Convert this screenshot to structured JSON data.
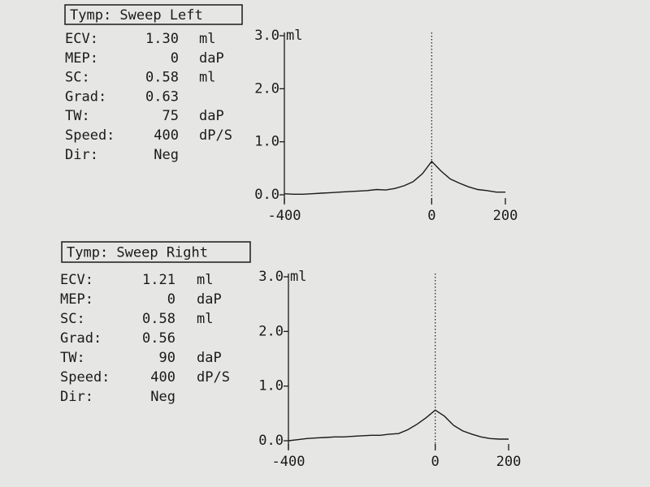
{
  "chart_data": [
    {
      "type": "line",
      "title": "Tymp: Sweep Left",
      "params": [
        [
          "ECV:",
          "1.30",
          "ml"
        ],
        [
          "MEP:",
          "0",
          "daP"
        ],
        [
          "SC:",
          "0.58",
          "ml"
        ],
        [
          "Grad:",
          "0.63"
        ],
        [
          "TW:",
          "75",
          "daP"
        ],
        [
          "Speed:",
          "400",
          "dP/S"
        ],
        [
          "Dir:",
          "Neg"
        ]
      ],
      "y_label": "ml",
      "x": [
        -400,
        -375,
        -350,
        -325,
        -300,
        -275,
        -250,
        -225,
        -200,
        -175,
        -150,
        -125,
        -100,
        -75,
        -50,
        -25,
        0,
        25,
        50,
        75,
        100,
        125,
        150,
        175,
        200
      ],
      "values": [
        0.02,
        0.01,
        0.01,
        0.02,
        0.03,
        0.04,
        0.05,
        0.06,
        0.07,
        0.08,
        0.1,
        0.09,
        0.12,
        0.17,
        0.25,
        0.4,
        0.63,
        0.45,
        0.3,
        0.22,
        0.15,
        0.1,
        0.08,
        0.05,
        0.05
      ],
      "ref_x": 0,
      "xlim": [
        -400,
        200
      ],
      "xticks": [
        -400,
        0,
        200
      ],
      "ylim": [
        0,
        3
      ],
      "yticks": [
        {
          "value": 0,
          "label": "0.0"
        },
        {
          "value": 1,
          "label": "1.0"
        },
        {
          "value": 2,
          "label": "2.0"
        },
        {
          "value": 3,
          "label": "3.0"
        }
      ],
      "color": "#1a1a1a"
    },
    {
      "type": "line",
      "title": "Tymp: Sweep Right",
      "params": [
        [
          "ECV:",
          "1.21",
          "ml"
        ],
        [
          "MEP:",
          "0",
          "daP"
        ],
        [
          "SC:",
          "0.58",
          "ml"
        ],
        [
          "Grad:",
          "0.56"
        ],
        [
          "TW:",
          "90",
          "daP"
        ],
        [
          "Speed:",
          "400",
          "dP/S"
        ],
        [
          "Dir:",
          "Neg"
        ]
      ],
      "y_label": "ml",
      "x": [
        -400,
        -375,
        -350,
        -325,
        -300,
        -275,
        -250,
        -225,
        -200,
        -175,
        -150,
        -125,
        -100,
        -75,
        -50,
        -25,
        0,
        25,
        50,
        75,
        100,
        125,
        150,
        175,
        200
      ],
      "values": [
        0.0,
        0.02,
        0.04,
        0.05,
        0.06,
        0.07,
        0.07,
        0.08,
        0.09,
        0.1,
        0.1,
        0.12,
        0.13,
        0.2,
        0.3,
        0.42,
        0.56,
        0.45,
        0.28,
        0.18,
        0.12,
        0.07,
        0.04,
        0.03,
        0.03
      ],
      "ref_x": 0,
      "xlim": [
        -400,
        200
      ],
      "xticks": [
        -400,
        0,
        200
      ],
      "ylim": [
        0,
        3
      ],
      "yticks": [
        {
          "value": 0,
          "label": "0.0"
        },
        {
          "value": 1,
          "label": "1.0"
        },
        {
          "value": 2,
          "label": "2.0"
        },
        {
          "value": 3,
          "label": "3.0"
        }
      ],
      "color": "#1a1a1a"
    }
  ]
}
